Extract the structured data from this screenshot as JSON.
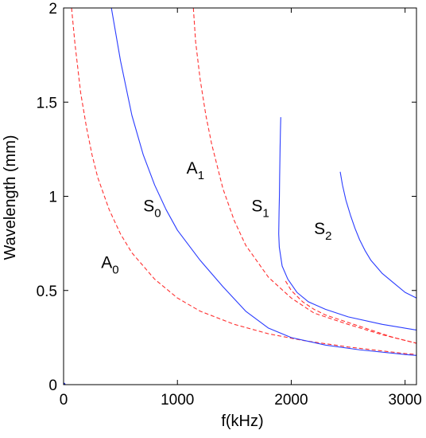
{
  "chart_data": {
    "type": "line",
    "title": "",
    "xlabel": "f(kHz)",
    "ylabel": "Wavelength (mm)",
    "xlim": [
      0,
      3100
    ],
    "ylim": [
      0,
      2
    ],
    "x_ticks": [
      {
        "value": 0,
        "label": "0"
      },
      {
        "value": 1000,
        "label": "1000"
      },
      {
        "value": 2000,
        "label": "2000"
      },
      {
        "value": 3000,
        "label": "3000"
      }
    ],
    "y_ticks": [
      {
        "value": 0,
        "label": "0"
      },
      {
        "value": 0.5,
        "label": "0.5"
      },
      {
        "value": 1,
        "label": "1"
      },
      {
        "value": 1.5,
        "label": "1.5"
      },
      {
        "value": 2,
        "label": "2"
      }
    ],
    "grid": false,
    "legend": "none",
    "series": [
      {
        "name": "A0",
        "label_main": "A",
        "label_sub": "0",
        "color": "#ff3030",
        "dash": "dashed",
        "x": [
          70,
          100,
          150,
          200,
          250,
          300,
          400,
          500,
          600,
          700,
          800,
          1000,
          1200,
          1500,
          1800,
          2100,
          2500,
          3000,
          3100
        ],
        "y": [
          2.0,
          1.81,
          1.55,
          1.37,
          1.22,
          1.1,
          0.93,
          0.8,
          0.7,
          0.63,
          0.56,
          0.46,
          0.39,
          0.32,
          0.27,
          0.235,
          0.2,
          0.165,
          0.16
        ]
      },
      {
        "name": "S0",
        "label_main": "S",
        "label_sub": "0",
        "color": "#2a3cff",
        "dash": "solid",
        "x": [
          420,
          500,
          600,
          700,
          800,
          900,
          1000,
          1200,
          1400,
          1600,
          1800,
          2000,
          2300,
          2600,
          3000,
          3100
        ],
        "y": [
          2.0,
          1.72,
          1.43,
          1.22,
          1.06,
          0.93,
          0.82,
          0.66,
          0.52,
          0.39,
          0.3,
          0.25,
          0.21,
          0.185,
          0.16,
          0.155
        ]
      },
      {
        "name": "A1",
        "label_main": "A",
        "label_sub": "1",
        "color": "#ff3030",
        "dash": "dashed",
        "x": [
          1140,
          1160,
          1200,
          1250,
          1300,
          1400,
          1500,
          1600,
          1800,
          2000,
          2200,
          2500,
          2800,
          3100
        ],
        "y": [
          2.0,
          1.82,
          1.62,
          1.43,
          1.28,
          1.04,
          0.87,
          0.74,
          0.57,
          0.46,
          0.38,
          0.32,
          0.265,
          0.22
        ]
      },
      {
        "name": "S1",
        "label_main": "S",
        "label_sub": "1",
        "color": "#2a3cff",
        "dash": "solid",
        "x": [
          1908,
          1905,
          1902,
          1900,
          1898,
          1896,
          1893,
          1890,
          1895,
          1920,
          1970,
          2050,
          2150,
          2300,
          2500,
          2800,
          3100
        ],
        "y": [
          1.42,
          1.35,
          1.26,
          1.18,
          1.1,
          1.0,
          0.92,
          0.8,
          0.73,
          0.63,
          0.56,
          0.49,
          0.44,
          0.4,
          0.36,
          0.32,
          0.29
        ]
      },
      {
        "name": "A1-upper",
        "label_main": "",
        "label_sub": "",
        "color": "#ff3030",
        "dash": "dashed",
        "x": [
          1950,
          2000,
          2100,
          2200,
          2300,
          2400,
          2500,
          2600,
          2700,
          2800,
          2900,
          3000,
          3100
        ],
        "y": [
          0.55,
          0.5,
          0.44,
          0.4,
          0.37,
          0.35,
          0.33,
          0.31,
          0.29,
          0.27,
          0.25,
          0.235,
          0.22
        ]
      },
      {
        "name": "S2",
        "label_main": "S",
        "label_sub": "2",
        "color": "#2a3cff",
        "dash": "solid",
        "x": [
          2430,
          2450,
          2480,
          2520,
          2560,
          2600,
          2650,
          2700,
          2800,
          2900,
          3000,
          3100
        ],
        "y": [
          1.13,
          1.06,
          0.98,
          0.9,
          0.83,
          0.77,
          0.71,
          0.66,
          0.59,
          0.54,
          0.49,
          0.46
        ]
      }
    ],
    "annotations": [
      {
        "main": "A",
        "sub": "0",
        "x": 330,
        "y": 0.62
      },
      {
        "main": "S",
        "sub": "0",
        "x": 700,
        "y": 0.92
      },
      {
        "main": "A",
        "sub": "1",
        "x": 1080,
        "y": 1.12
      },
      {
        "main": "S",
        "sub": "1",
        "x": 1650,
        "y": 0.92
      },
      {
        "main": "S",
        "sub": "2",
        "x": 2200,
        "y": 0.8
      }
    ],
    "origin_marker": {
      "x": 0,
      "y": 0,
      "color": "#1f2fd8"
    }
  }
}
